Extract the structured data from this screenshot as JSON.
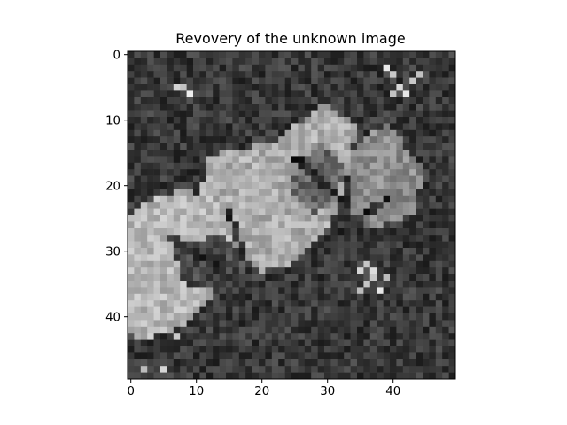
{
  "chart_data": {
    "type": "heatmap",
    "title": "Revovery of the unknown image",
    "xlabel": "",
    "ylabel": "",
    "colormap": "gray",
    "grid": false,
    "xlim": [
      -0.5,
      49.5
    ],
    "ylim": [
      49.5,
      -0.5
    ],
    "x_ticks": [
      0,
      10,
      20,
      30,
      40
    ],
    "y_ticks": [
      0,
      10,
      20,
      30,
      40
    ],
    "rows": 50,
    "cols": 50,
    "value_range": [
      0,
      1
    ],
    "background_level": 0.22,
    "noise_amplitude": 0.12,
    "seed": 7,
    "regions": [
      {
        "kind": "polygon",
        "label": "central-block",
        "level": 0.68,
        "points": [
          [
            12,
            16
          ],
          [
            22,
            14
          ],
          [
            30,
            8
          ],
          [
            35,
            11
          ],
          [
            34,
            18
          ],
          [
            31,
            27
          ],
          [
            25,
            33
          ],
          [
            17,
            34
          ],
          [
            11,
            24
          ]
        ]
      },
      {
        "kind": "polygon",
        "label": "right-ear",
        "level": 0.55,
        "points": [
          [
            34,
            15
          ],
          [
            38,
            12
          ],
          [
            40,
            11
          ],
          [
            42,
            14
          ],
          [
            45,
            18
          ],
          [
            44,
            25
          ],
          [
            38,
            27
          ],
          [
            34,
            26
          ]
        ]
      },
      {
        "kind": "polygon",
        "label": "left-blob",
        "level": 0.72,
        "points": [
          [
            0,
            26
          ],
          [
            3,
            23
          ],
          [
            8,
            21
          ],
          [
            13,
            22
          ],
          [
            16,
            27
          ],
          [
            16,
            32
          ],
          [
            13,
            38
          ],
          [
            8,
            42
          ],
          [
            3,
            44
          ],
          [
            0,
            43
          ]
        ]
      },
      {
        "kind": "polygon",
        "label": "inner-shadow",
        "level": 0.4,
        "points": [
          [
            26,
            17
          ],
          [
            30,
            14
          ],
          [
            33,
            17
          ],
          [
            32,
            23
          ],
          [
            28,
            25
          ],
          [
            25,
            21
          ]
        ]
      },
      {
        "kind": "polygon",
        "label": "bottom-shadow",
        "level": 0.28,
        "points": [
          [
            7,
            30
          ],
          [
            14,
            28
          ],
          [
            20,
            33
          ],
          [
            17,
            37
          ],
          [
            9,
            36
          ]
        ]
      },
      {
        "kind": "line",
        "label": "crease-a",
        "level": 0.15,
        "from": [
          6,
          28
        ],
        "to": [
          15,
          34
        ]
      },
      {
        "kind": "line",
        "label": "crease-b",
        "level": 0.15,
        "from": [
          25,
          16
        ],
        "to": [
          33,
          23
        ]
      },
      {
        "kind": "line",
        "label": "crease-c",
        "level": 0.15,
        "from": [
          30,
          28
        ],
        "to": [
          39,
          22
        ]
      },
      {
        "kind": "line",
        "label": "crease-d",
        "level": 0.15,
        "from": [
          15,
          24
        ],
        "to": [
          18,
          33
        ]
      }
    ],
    "bright_specks": [
      [
        8,
        5
      ],
      [
        9,
        6
      ],
      [
        7,
        5
      ],
      [
        39,
        2
      ],
      [
        40,
        3
      ],
      [
        41,
        5
      ],
      [
        43,
        4
      ],
      [
        44,
        3
      ],
      [
        42,
        6
      ],
      [
        40,
        6
      ],
      [
        36,
        32
      ],
      [
        37,
        33
      ],
      [
        37,
        34
      ],
      [
        36,
        35
      ],
      [
        35,
        36
      ],
      [
        38,
        36
      ],
      [
        39,
        34
      ],
      [
        35,
        33
      ],
      [
        5,
        48
      ],
      [
        2,
        48
      ],
      [
        7,
        43
      ]
    ]
  }
}
